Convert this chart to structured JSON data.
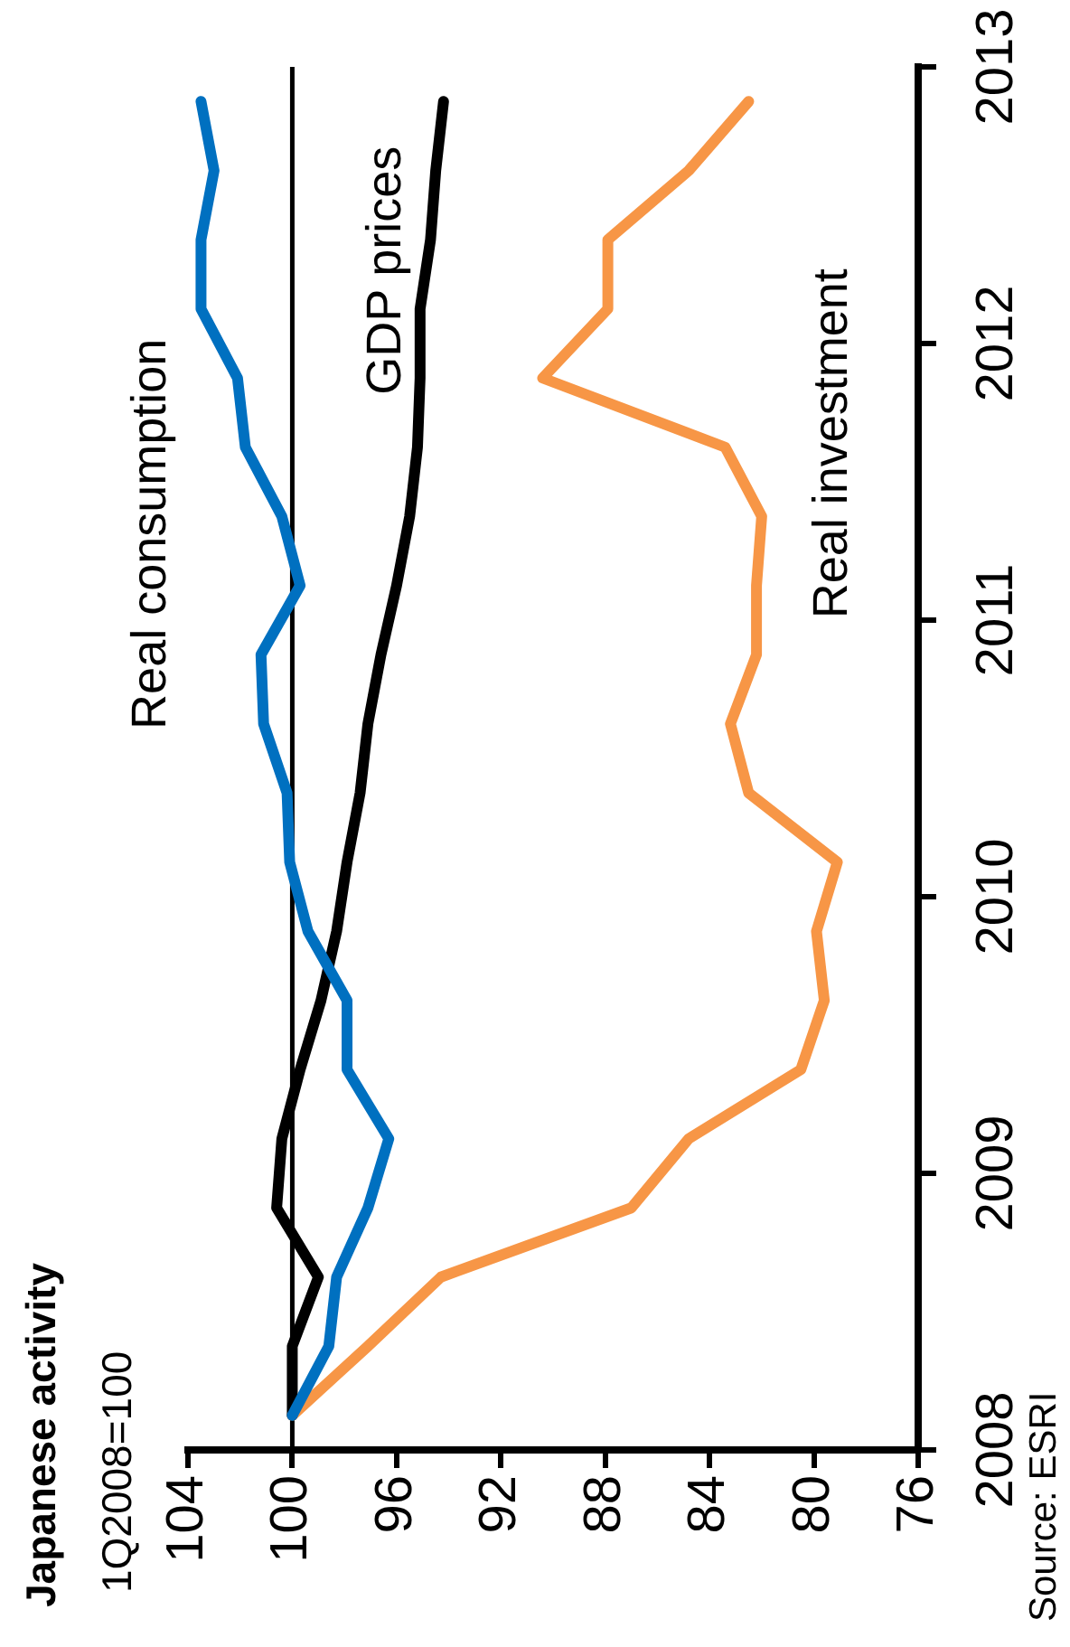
{
  "chart_data": {
    "type": "line",
    "title": "Japanese activity",
    "subtitle": "1Q2008=100",
    "annotations": [
      "Source: ESRI"
    ],
    "xlim": [
      104,
      76
    ],
    "xticks": [
      104,
      100,
      96,
      92,
      88,
      84,
      80,
      76
    ],
    "ylim": [
      2008,
      2013
    ],
    "yticks": [
      2008,
      2009,
      2010,
      2011,
      2012,
      2013
    ],
    "grid": false,
    "legend": false,
    "marker": "none",
    "line_style": "solid",
    "ref_lines": [
      {
        "axis": "x",
        "value": 100,
        "color": "#000000"
      }
    ],
    "series": [
      {
        "name": "Real consumption",
        "color": "#0070c0",
        "x": [
          100,
          98.6,
          98.3,
          97.1,
          96.3,
          97.9,
          97.9,
          99.4,
          100.1,
          100.2,
          101.1,
          101.2,
          99.7,
          100.4,
          101.8,
          102.1,
          103.5,
          103.5,
          103.0,
          103.5
        ],
        "values": [
          2008.125,
          2008.375,
          2008.625,
          2008.875,
          2009.125,
          2009.375,
          2009.625,
          2009.875,
          2010.125,
          2010.375,
          2010.625,
          2010.875,
          2011.125,
          2011.375,
          2011.625,
          2011.875,
          2012.125,
          2012.375,
          2012.625,
          2012.875
        ]
      },
      {
        "name": "GDP prices",
        "color": "#000000",
        "x": [
          100,
          100,
          99.0,
          100.6,
          100.4,
          99.7,
          98.9,
          98.3,
          97.9,
          97.4,
          97.1,
          96.6,
          96.0,
          95.5,
          95.2,
          95.1,
          95.1,
          94.7,
          94.5,
          94.2
        ],
        "values": [
          2008.125,
          2008.375,
          2008.625,
          2008.875,
          2009.125,
          2009.375,
          2009.625,
          2009.875,
          2010.125,
          2010.375,
          2010.625,
          2010.875,
          2011.125,
          2011.375,
          2011.625,
          2011.875,
          2012.125,
          2012.375,
          2012.625,
          2012.875
        ]
      },
      {
        "name": "Real investment",
        "color": "#f79646",
        "x": [
          100,
          97.1,
          94.3,
          87.0,
          84.8,
          80.5,
          79.6,
          79.9,
          79.1,
          82.5,
          83.2,
          82.2,
          82.2,
          82.0,
          83.4,
          90.4,
          87.9,
          87.9,
          84.8,
          82.5
        ],
        "values": [
          2008.125,
          2008.375,
          2008.625,
          2008.875,
          2009.125,
          2009.375,
          2009.625,
          2009.875,
          2010.125,
          2010.375,
          2010.625,
          2010.875,
          2011.125,
          2011.375,
          2011.625,
          2011.875,
          2012.125,
          2012.375,
          2012.625,
          2012.875
        ]
      }
    ]
  }
}
